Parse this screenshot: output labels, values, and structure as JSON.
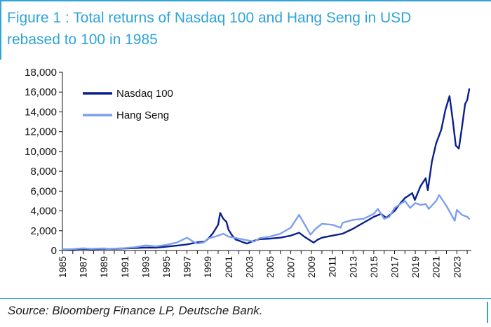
{
  "title_lines": [
    "Figure 1 : Total returns of Nasdaq 100 and Hang Seng in USD",
    "rebased to 100 in 1985"
  ],
  "source": "Source: Bloomberg Finance LP, Deutsche Bank.",
  "colors": {
    "accent": "#2fa4d8",
    "nasdaq": "#0a1f8f",
    "hangseng": "#7d9ff0"
  },
  "chart_data": {
    "type": "line",
    "title": "",
    "xlabel": "",
    "ylabel": "",
    "xlim": [
      1985,
      2024.4
    ],
    "ylim": [
      0,
      18000
    ],
    "y_ticks": [
      0,
      2000,
      4000,
      6000,
      8000,
      10000,
      12000,
      14000,
      16000,
      18000
    ],
    "y_tick_labels": [
      "0",
      "2,000",
      "4,000",
      "6,000",
      "8,000",
      "10,000",
      "12,000",
      "14,000",
      "16,000",
      "18,000"
    ],
    "x_tick_labels": [
      "1985",
      "1987",
      "1989",
      "1991",
      "1993",
      "1995",
      "1997",
      "1999",
      "2001",
      "2003",
      "2005",
      "2007",
      "2009",
      "2011",
      "2013",
      "2015",
      "2017",
      "2019",
      "2021",
      "2023"
    ],
    "grid": false,
    "legend": "top-left",
    "series": [
      {
        "name": "Nasdaq 100",
        "color": "#0a1f8f",
        "x": [
          1985,
          1986,
          1987,
          1987.8,
          1988,
          1989,
          1990,
          1991,
          1992,
          1993,
          1994,
          1995,
          1996,
          1997,
          1998,
          1998.7,
          1999,
          1999.5,
          2000.0,
          2000.2,
          2000.5,
          2000.8,
          2001.0,
          2001.3,
          2001.7,
          2002.0,
          2002.5,
          2002.8,
          2003.0,
          2003.5,
          2004.0,
          2005.0,
          2006.0,
          2007.0,
          2007.8,
          2008.3,
          2008.9,
          2009.2,
          2009.6,
          2010.0,
          2011.0,
          2012.0,
          2013.0,
          2014.0,
          2015.0,
          2015.7,
          2016.2,
          2017.0,
          2017.5,
          2018.0,
          2018.7,
          2018.95,
          2019.5,
          2020.0,
          2020.2,
          2020.6,
          2021.0,
          2021.5,
          2021.9,
          2022.3,
          2022.6,
          2022.9,
          2023.2,
          2023.5,
          2023.8,
          2024.0,
          2024.2
        ],
        "values": [
          100,
          120,
          180,
          130,
          140,
          170,
          160,
          210,
          250,
          300,
          290,
          380,
          490,
          620,
          830,
          900,
          1150,
          1750,
          2600,
          3800,
          3200,
          2900,
          2100,
          1600,
          1100,
          1000,
          800,
          700,
          800,
          1000,
          1150,
          1200,
          1300,
          1500,
          1800,
          1400,
          1000,
          800,
          1100,
          1300,
          1500,
          1700,
          2200,
          2800,
          3400,
          3700,
          3300,
          4000,
          4700,
          5300,
          5800,
          5100,
          6500,
          7300,
          6100,
          9000,
          10800,
          12200,
          14200,
          15600,
          13200,
          10600,
          10300,
          12500,
          14800,
          15200,
          16300
        ]
      },
      {
        "name": "Hang Seng",
        "color": "#7d9ff0",
        "x": [
          1985,
          1986,
          1987,
          1987.8,
          1988,
          1989,
          1989.4,
          1990,
          1991,
          1992,
          1993,
          1994,
          1995,
          1996,
          1997,
          1997.6,
          1998,
          1998.6,
          1999,
          2000,
          2000.5,
          2001,
          2002,
          2003,
          2003.5,
          2004,
          2005,
          2006,
          2007,
          2007.8,
          2008.3,
          2008.9,
          2009.4,
          2010,
          2011,
          2011.8,
          2012,
          2013,
          2014,
          2015,
          2015.4,
          2016,
          2016.5,
          2017,
          2018,
          2018.5,
          2019,
          2019.5,
          2020,
          2020.3,
          2021,
          2021.3,
          2022,
          2022.8,
          2023,
          2023.5,
          2024,
          2024.2
        ],
        "values": [
          100,
          150,
          230,
          160,
          180,
          210,
          160,
          190,
          240,
          330,
          520,
          420,
          560,
          800,
          1300,
          900,
          700,
          800,
          1200,
          1500,
          1700,
          1400,
          1200,
          1000,
          900,
          1250,
          1400,
          1700,
          2300,
          3600,
          2700,
          1600,
          2200,
          2700,
          2600,
          2300,
          2800,
          3100,
          3200,
          3700,
          4200,
          3200,
          3400,
          4300,
          5000,
          4300,
          4800,
          4600,
          4700,
          4200,
          5000,
          5600,
          4500,
          3000,
          4100,
          3600,
          3400,
          3200
        ]
      }
    ]
  }
}
